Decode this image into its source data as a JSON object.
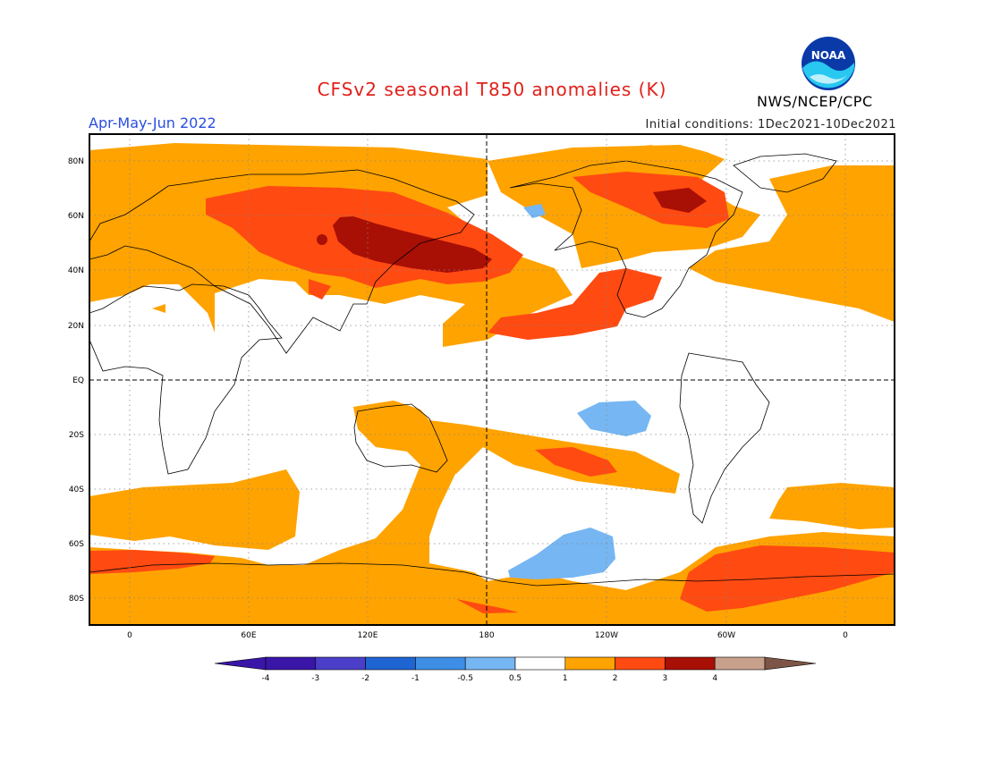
{
  "title": "CFSv2 seasonal T850 anomalies (K)",
  "period": "Apr-May-Jun 2022",
  "initial_conditions": "Initial conditions: 1Dec2021-10Dec2021",
  "agency": "NWS/NCEP/CPC",
  "logo_text": "NOAA",
  "colors": {
    "neg4": "#3a16a8",
    "neg3": "#4b3fc9",
    "neg2": "#1e64d2",
    "neg1": "#3e8ee6",
    "neg05": "#76b6f2",
    "neutral": "#ffffff",
    "pos05": "#ffa300",
    "pos1": "#ff4a12",
    "pos2": "#a80f05",
    "pos3": "#c8a08c",
    "pos4": "#7d5546",
    "title": "#e0201a",
    "period": "#2a4ee0"
  },
  "lat_labels": [
    "80N",
    "60N",
    "40N",
    "20N",
    "EQ",
    "20S",
    "40S",
    "60S",
    "80S"
  ],
  "lon_labels": [
    "0",
    "60E",
    "120E",
    "180",
    "120W",
    "60W",
    "0"
  ],
  "colorbar": {
    "labels": [
      "-4",
      "-3",
      "-2",
      "-1",
      "-0.5",
      "0.5",
      "1",
      "2",
      "3",
      "4"
    ],
    "bins": [
      "neg4",
      "neg3",
      "neg2",
      "neg1",
      "neg05",
      "neutral",
      "pos05",
      "pos1",
      "pos2",
      "pos3"
    ],
    "left_arrow": "neg4",
    "right_arrow": "pos4"
  }
}
